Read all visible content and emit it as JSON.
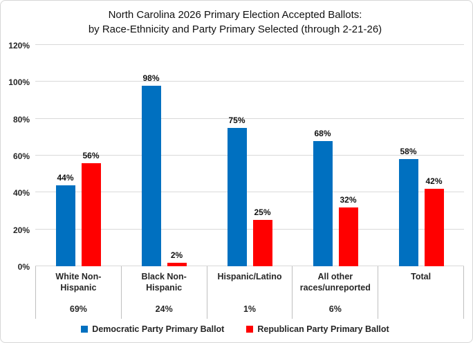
{
  "title": {
    "line1": "North Carolina 2026 Primary Election Accepted Ballots:",
    "line2": "by Race-Ethnicity and Party Primary Selected (through 2-21-26)"
  },
  "colors": {
    "democratic_blue": "#0070C0",
    "republican_red": "#FF0000",
    "gridline": "#D9D9D9",
    "category_border": "#BFBFBF",
    "background": "#FFFFFF"
  },
  "chart_data": {
    "type": "bar",
    "title": "North Carolina 2026 Primary Election Accepted Ballots: by Race-Ethnicity and Party Primary Selected (through 2-21-26)",
    "categories": [
      "White Non-Hispanic",
      "Black Non-Hispanic",
      "Hispanic/Latino",
      "All other races/unreported",
      "Total"
    ],
    "category_share_labels": [
      "69%",
      "24%",
      "1%",
      "6%",
      ""
    ],
    "series": [
      {
        "name": "Democratic Party Primary Ballot",
        "color": "#0070C0",
        "values": [
          44,
          98,
          75,
          68,
          58
        ],
        "labels": [
          "44%",
          "98%",
          "75%",
          "68%",
          "58%"
        ]
      },
      {
        "name": "Republican Party Primary Ballot",
        "color": "#FF0000",
        "values": [
          56,
          2,
          25,
          32,
          42
        ],
        "labels": [
          "56%",
          "2%",
          "25%",
          "32%",
          "42%"
        ]
      }
    ],
    "xlabel": "",
    "ylabel": "",
    "ylim": [
      0,
      120
    ],
    "yticks": [
      {
        "value": 0,
        "label": "0%"
      },
      {
        "value": 20,
        "label": "20%"
      },
      {
        "value": 40,
        "label": "40%"
      },
      {
        "value": 60,
        "label": "60%"
      },
      {
        "value": 80,
        "label": "80%"
      },
      {
        "value": 100,
        "label": "100%"
      },
      {
        "value": 120,
        "label": "120%"
      }
    ],
    "grid": true,
    "legend_position": "bottom"
  }
}
